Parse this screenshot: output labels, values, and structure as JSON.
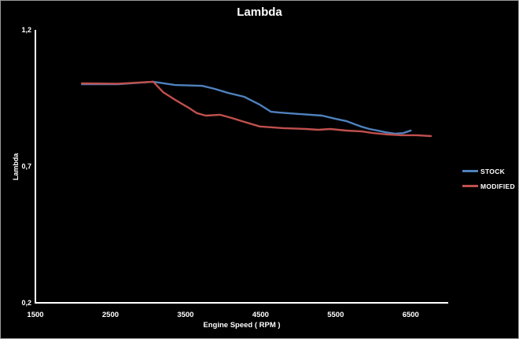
{
  "chart_data": {
    "type": "line",
    "title": "Lambda",
    "xlabel": "Engine Speed ( RPM )",
    "ylabel": "Lambda",
    "xlim": [
      1500,
      7000
    ],
    "ylim": [
      0.2,
      1.2
    ],
    "xticks": [
      1500,
      2500,
      3500,
      4500,
      5500,
      6500
    ],
    "xtick_labels": [
      "1500",
      "2500",
      "3500",
      "4500",
      "5500",
      "6500"
    ],
    "yticks": [
      1.2,
      0.7,
      0.2
    ],
    "ytick_labels": [
      "1,2",
      "0,7",
      "0,2"
    ],
    "grid": false,
    "background_color": "#000000",
    "axis_color": "#ffffff",
    "text_color": "#ffffff",
    "legend_position": "right",
    "series": [
      {
        "name": "STOCK",
        "color": "#4F81BD",
        "points": [
          [
            2120,
            1.001
          ],
          [
            2600,
            1.001
          ],
          [
            3070,
            1.01
          ],
          [
            3360,
            0.998
          ],
          [
            3720,
            0.995
          ],
          [
            3890,
            0.984
          ],
          [
            4070,
            0.969
          ],
          [
            4280,
            0.955
          ],
          [
            4490,
            0.926
          ],
          [
            4640,
            0.9
          ],
          [
            4750,
            0.897
          ],
          [
            5010,
            0.892
          ],
          [
            5320,
            0.886
          ],
          [
            5500,
            0.874
          ],
          [
            5640,
            0.866
          ],
          [
            5850,
            0.845
          ],
          [
            5950,
            0.837
          ],
          [
            6060,
            0.831
          ],
          [
            6160,
            0.825
          ],
          [
            6290,
            0.82
          ],
          [
            6400,
            0.822
          ],
          [
            6500,
            0.831
          ]
        ]
      },
      {
        "name": "MODIFIED",
        "color": "#C0504D",
        "points": [
          [
            2120,
            1.004
          ],
          [
            2600,
            1.003
          ],
          [
            3070,
            1.01
          ],
          [
            3200,
            0.972
          ],
          [
            3360,
            0.944
          ],
          [
            3540,
            0.915
          ],
          [
            3650,
            0.895
          ],
          [
            3770,
            0.886
          ],
          [
            3960,
            0.889
          ],
          [
            4120,
            0.877
          ],
          [
            4280,
            0.863
          ],
          [
            4490,
            0.846
          ],
          [
            4800,
            0.84
          ],
          [
            5110,
            0.837
          ],
          [
            5270,
            0.834
          ],
          [
            5430,
            0.837
          ],
          [
            5640,
            0.831
          ],
          [
            5850,
            0.828
          ],
          [
            6000,
            0.822
          ],
          [
            6190,
            0.817
          ],
          [
            6370,
            0.814
          ],
          [
            6580,
            0.814
          ],
          [
            6770,
            0.811
          ]
        ]
      }
    ]
  }
}
